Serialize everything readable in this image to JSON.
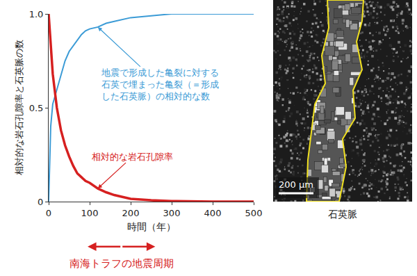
{
  "chart_data": {
    "type": "line",
    "xlabel": "時間（年）",
    "ylabel": "相対的な岩石孔隙率と石英脈の数",
    "xlim": [
      0,
      500
    ],
    "ylim": [
      0,
      1
    ],
    "xticks": [
      0,
      100,
      200,
      300,
      400,
      500
    ],
    "yticks": [
      0,
      0.5,
      {
        "value": 1,
        "label": "1.0"
      }
    ],
    "grid": false,
    "x": [
      0,
      5,
      10,
      20,
      30,
      40,
      50,
      60,
      70,
      80,
      90,
      100,
      120,
      140,
      160,
      180,
      200,
      250,
      300,
      400,
      500
    ],
    "series": [
      {
        "name": "地震で形成した亀裂に対する石英で埋まった亀裂（＝形成した石英脈）の相対的な数",
        "color": "#3b9bd6",
        "values": [
          0,
          0.4,
          0.52,
          0.6,
          0.68,
          0.75,
          0.8,
          0.83,
          0.86,
          0.89,
          0.91,
          0.92,
          0.93,
          0.95,
          0.96,
          0.97,
          0.98,
          0.99,
          1,
          1,
          1
        ]
      },
      {
        "name": "相対的な岩石孔隙率",
        "color": "#d62020",
        "values": [
          1,
          0.82,
          0.68,
          0.5,
          0.38,
          0.3,
          0.24,
          0.19,
          0.15,
          0.13,
          0.11,
          0.1,
          0.07,
          0.05,
          0.035,
          0.025,
          0.015,
          0.007,
          0.003,
          0,
          0
        ]
      }
    ],
    "period": {
      "label": "南海トラフの地震周期",
      "range": [
        95,
        260
      ],
      "color": "#d62020"
    }
  },
  "micrograph": {
    "caption": "石英脈",
    "scale_bar": "200 μm"
  }
}
